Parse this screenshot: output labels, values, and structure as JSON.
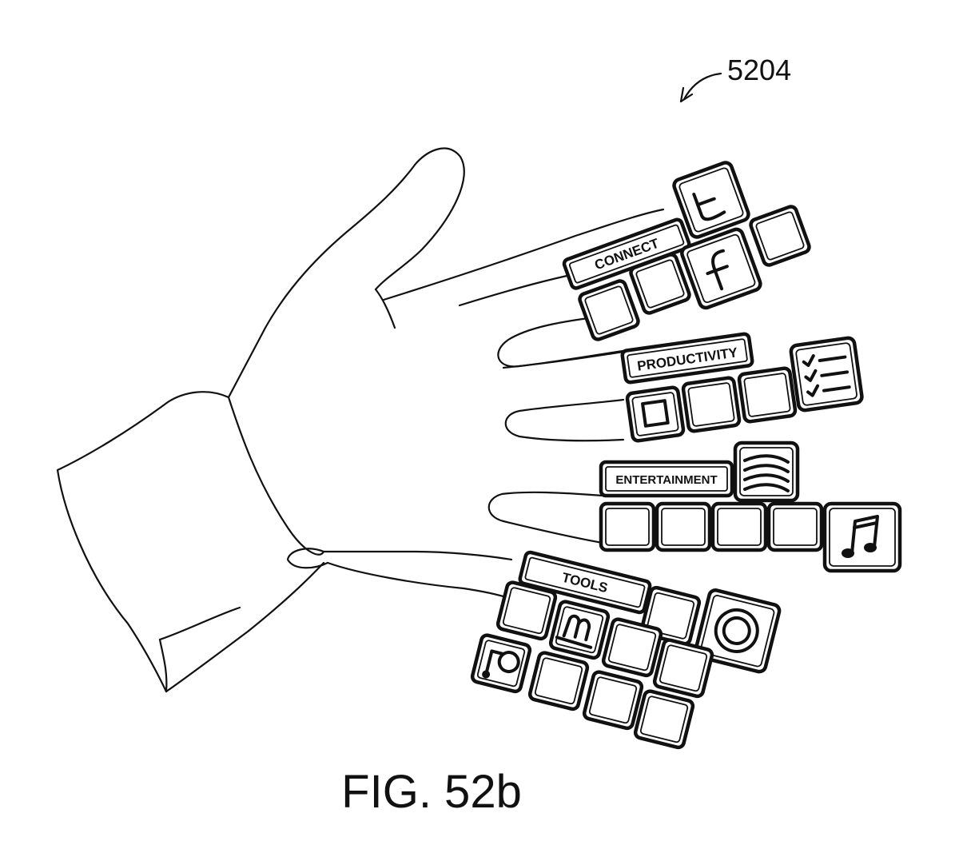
{
  "figure": {
    "caption": "FIG. 52b",
    "reference_number": "5204"
  },
  "menus": {
    "connect": {
      "label": "CONNECT",
      "icons": [
        "twitter-icon",
        "facebook-icon"
      ]
    },
    "productivity": {
      "label": "PRODUCTIVITY",
      "icons": [
        "stop-square-icon",
        "checklist-icon"
      ]
    },
    "entertainment": {
      "label": "ENTERTAINMENT",
      "icons": [
        "audio-waves-icon",
        "music-note-icon"
      ]
    },
    "tools": {
      "label": "TOOLS",
      "icons": [
        "target-ring-icon",
        "tape-icon",
        "spool-icon"
      ]
    }
  },
  "colors": {
    "line": "#111111",
    "background": "#ffffff"
  }
}
